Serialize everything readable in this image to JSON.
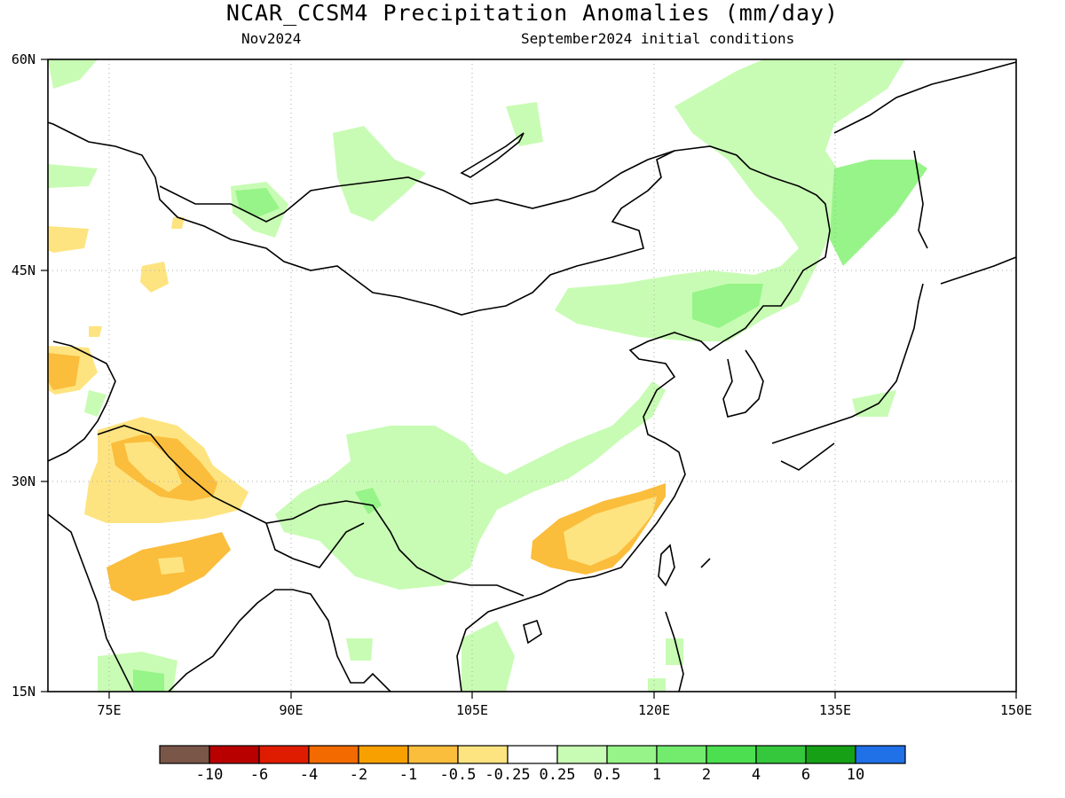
{
  "title": "NCAR_CCSM4 Precipitation Anomalies (mm/day)",
  "subtitle_left": "Nov2024",
  "subtitle_right": "September2024 initial conditions",
  "lat_labels": [
    "60N",
    "45N",
    "30N",
    "15N"
  ],
  "lon_labels": [
    "75E",
    "90E",
    "105E",
    "120E",
    "135E",
    "150E"
  ],
  "colorbar": {
    "colors": [
      "#7a5648",
      "#b80000",
      "#e01c00",
      "#f26a00",
      "#f8a000",
      "#fbbd3c",
      "#fee480",
      "#ffffff",
      "#c8fcb4",
      "#96f488",
      "#73ec6e",
      "#4ce050",
      "#36c83c",
      "#16a016",
      "#2070e8"
    ],
    "labels": [
      "-10",
      "-6",
      "-4",
      "-2",
      "-1",
      "-0.5",
      "-0.25",
      "0.25",
      "0.5",
      "1",
      "2",
      "4",
      "6",
      "10"
    ]
  },
  "map_regions": [
    {
      "name": "west-siberia-wet",
      "color": "#c8fcb4"
    },
    {
      "name": "northeast-asia-wet",
      "color": "#c8fcb4"
    },
    {
      "name": "northeast-asia-wet-core",
      "color": "#96f488"
    },
    {
      "name": "north-china-wet",
      "color": "#c8fcb4"
    },
    {
      "name": "tibet-myanmar-wet",
      "color": "#c8fcb4"
    },
    {
      "name": "tibet-myanmar-wet-core",
      "color": "#96f488"
    },
    {
      "name": "himalaya-dry",
      "color": "#fee480"
    },
    {
      "name": "himalaya-dry-core",
      "color": "#fbbd3c"
    },
    {
      "name": "southeast-china-dry",
      "color": "#fee480"
    },
    {
      "name": "southeast-china-dry-core",
      "color": "#fbbd3c"
    },
    {
      "name": "india-dry",
      "color": "#fee480"
    }
  ]
}
